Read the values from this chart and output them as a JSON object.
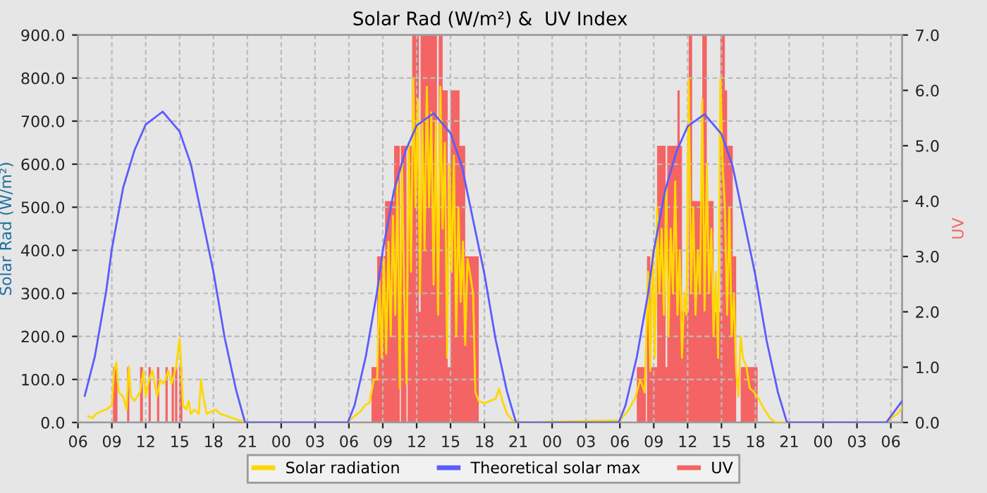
{
  "chart_data": {
    "type": "line",
    "title": "Solar Rad (W/m²) &  UV Index",
    "ylabel": "Solar Rad (W/m²)",
    "y2label": "UV",
    "xlim": [
      6,
      79
    ],
    "ylim": [
      0,
      900
    ],
    "y2lim": [
      0,
      7
    ],
    "xticks": [
      {
        "value": 6,
        "label": "06"
      },
      {
        "value": 9,
        "label": "09"
      },
      {
        "value": 12,
        "label": "12"
      },
      {
        "value": 15,
        "label": "15"
      },
      {
        "value": 18,
        "label": "18"
      },
      {
        "value": 21,
        "label": "21"
      },
      {
        "value": 24,
        "label": "00"
      },
      {
        "value": 27,
        "label": "03"
      },
      {
        "value": 30,
        "label": "06"
      },
      {
        "value": 33,
        "label": "09"
      },
      {
        "value": 36,
        "label": "12"
      },
      {
        "value": 39,
        "label": "15"
      },
      {
        "value": 42,
        "label": "18"
      },
      {
        "value": 45,
        "label": "21"
      },
      {
        "value": 48,
        "label": "00"
      },
      {
        "value": 51,
        "label": "03"
      },
      {
        "value": 54,
        "label": "06"
      },
      {
        "value": 57,
        "label": "09"
      },
      {
        "value": 60,
        "label": "12"
      },
      {
        "value": 63,
        "label": "15"
      },
      {
        "value": 66,
        "label": "18"
      },
      {
        "value": 69,
        "label": "21"
      },
      {
        "value": 72,
        "label": "00"
      },
      {
        "value": 75,
        "label": "03"
      },
      {
        "value": 78,
        "label": "06"
      }
    ],
    "yticks": [
      {
        "value": 0,
        "label": "0.0"
      },
      {
        "value": 100,
        "label": "100.0"
      },
      {
        "value": 200,
        "label": "200.0"
      },
      {
        "value": 300,
        "label": "300.0"
      },
      {
        "value": 400,
        "label": "400.0"
      },
      {
        "value": 500,
        "label": "500.0"
      },
      {
        "value": 600,
        "label": "600.0"
      },
      {
        "value": 700,
        "label": "700.0"
      },
      {
        "value": 800,
        "label": "800.0"
      },
      {
        "value": 900,
        "label": "900.0"
      }
    ],
    "y2ticks": [
      {
        "value": 0,
        "label": "0.0"
      },
      {
        "value": 1,
        "label": "1.0"
      },
      {
        "value": 2,
        "label": "2.0"
      },
      {
        "value": 3,
        "label": "3.0"
      },
      {
        "value": 4,
        "label": "4.0"
      },
      {
        "value": 5,
        "label": "5.0"
      },
      {
        "value": 6,
        "label": "6.0"
      },
      {
        "value": 7,
        "label": "7.0"
      }
    ],
    "grid": true,
    "legend": "bottom",
    "series": [
      {
        "name": "UV",
        "type": "area",
        "axis": "y2",
        "color": "#f46464",
        "x": [
          6.6,
          9.1,
          9.5,
          10.35,
          10.55,
          11.5,
          11.75,
          12.25,
          12.45,
          13.0,
          13.2,
          13.75,
          13.95,
          14.3,
          14.5,
          14.6,
          14.8,
          14.95,
          15.25,
          32.0,
          32.5,
          33.2,
          34.0,
          34.5,
          34.6,
          35.1,
          35.2,
          35.6,
          36.2,
          36.35,
          37.8,
          37.95,
          38.3,
          38.75,
          39.0,
          39.8,
          40.3,
          41.5,
          55.5,
          56.3,
          56.4,
          56.7,
          57.3,
          58.05,
          58.2,
          59.1,
          59.3,
          59.5,
          60.1,
          60.4,
          61.3,
          61.7,
          62.3,
          62.9,
          63.3,
          63.5,
          64.0,
          64.3,
          64.7,
          66.2,
          78.9
        ],
        "values": [
          0,
          1,
          0,
          1,
          0,
          1,
          0,
          1,
          0,
          1,
          0,
          1,
          0,
          1,
          0,
          1,
          0,
          1,
          0,
          1,
          3,
          4,
          5,
          0,
          5,
          0,
          5,
          7,
          2,
          7,
          2,
          7,
          6,
          1,
          6,
          5,
          3,
          0,
          1,
          0,
          3,
          1,
          5,
          1,
          5,
          6,
          5,
          2,
          7,
          4,
          7,
          4,
          2,
          7,
          6,
          5,
          3,
          0,
          1,
          0,
          0
        ]
      },
      {
        "name": "Solar radiation",
        "color": "#ffd700",
        "x": [
          6.9,
          7.3,
          7.6,
          8.0,
          8.5,
          9.0,
          9.2,
          9.4,
          9.6,
          10.0,
          10.3,
          10.5,
          10.7,
          11.0,
          11.5,
          11.8,
          12.0,
          12.3,
          12.6,
          13.0,
          13.3,
          13.6,
          14.0,
          14.3,
          14.7,
          15.0,
          15.1,
          15.3,
          15.6,
          15.8,
          16.0,
          16.3,
          16.7,
          16.9,
          17.1,
          17.4,
          17.8,
          18.2,
          18.6,
          19.2,
          19.7,
          20.3,
          21.0,
          29.8,
          30.5,
          31.0,
          31.5,
          31.8,
          32.0,
          32.2,
          32.5,
          32.7,
          32.9,
          33.1,
          33.3,
          33.5,
          33.7,
          33.9,
          34.1,
          34.3,
          34.5,
          34.7,
          34.9,
          35.1,
          35.3,
          35.5,
          35.7,
          35.9,
          36.1,
          36.3,
          36.5,
          36.7,
          36.9,
          37.1,
          37.3,
          37.5,
          37.7,
          37.9,
          38.1,
          38.3,
          38.5,
          38.7,
          38.9,
          39.1,
          39.3,
          39.5,
          39.7,
          39.9,
          40.1,
          40.3,
          40.5,
          40.7,
          41.0,
          41.2,
          41.5,
          42.0,
          42.5,
          43.0,
          43.3,
          43.6,
          44.0,
          44.5,
          45.0,
          54.0,
          54.8,
          55.4,
          55.8,
          56.2,
          56.5,
          56.7,
          56.9,
          57.1,
          57.3,
          57.5,
          57.7,
          57.9,
          58.1,
          58.3,
          58.5,
          58.7,
          58.9,
          59.1,
          59.3,
          59.5,
          59.7,
          59.9,
          60.1,
          60.3,
          60.5,
          60.7,
          60.9,
          61.1,
          61.3,
          61.5,
          61.7,
          61.9,
          62.1,
          62.3,
          62.5,
          62.7,
          62.9,
          63.1,
          63.3,
          63.5,
          63.7,
          63.9,
          64.1,
          64.3,
          64.5,
          64.7,
          64.9,
          65.2,
          65.5,
          65.9,
          66.3,
          66.8,
          67.3,
          67.8,
          77.6,
          78.0,
          78.6,
          79.0
        ],
        "values": [
          15,
          10,
          20,
          25,
          30,
          40,
          120,
          140,
          70,
          60,
          30,
          130,
          60,
          50,
          70,
          120,
          60,
          100,
          120,
          60,
          100,
          90,
          120,
          90,
          130,
          195,
          150,
          40,
          30,
          50,
          20,
          30,
          20,
          100,
          60,
          20,
          25,
          30,
          20,
          15,
          10,
          5,
          0,
          0,
          15,
          25,
          42,
          45,
          70,
          100,
          100,
          330,
          150,
          380,
          160,
          420,
          200,
          480,
          250,
          560,
          80,
          600,
          300,
          90,
          650,
          350,
          800,
          500,
          750,
          300,
          700,
          400,
          780,
          500,
          720,
          320,
          700,
          250,
          780,
          450,
          650,
          150,
          600,
          350,
          620,
          200,
          500,
          280,
          420,
          180,
          380,
          350,
          300,
          70,
          50,
          45,
          50,
          55,
          78,
          50,
          20,
          5,
          0,
          5,
          30,
          60,
          100,
          70,
          350,
          120,
          400,
          150,
          500,
          300,
          450,
          250,
          550,
          200,
          450,
          300,
          560,
          250,
          400,
          150,
          300,
          250,
          800,
          300,
          500,
          250,
          400,
          300,
          750,
          260,
          600,
          300,
          450,
          200,
          350,
          150,
          800,
          600,
          500,
          250,
          500,
          200,
          300,
          120,
          60,
          200,
          150,
          130,
          80,
          70,
          55,
          30,
          10,
          0,
          0,
          10,
          20,
          35
        ]
      },
      {
        "name": "Theoretical solar max",
        "color": "#5b5bff",
        "x": [
          6.6,
          7.5,
          8.5,
          9.0,
          10.0,
          11.0,
          12.0,
          13.5,
          15.0,
          16.0,
          17.0,
          18.0,
          19.0,
          20.0,
          20.8,
          29.9,
          30.5,
          31.5,
          32.5,
          33.0,
          34.0,
          35.0,
          36.0,
          37.5,
          39.0,
          40.0,
          41.0,
          42.0,
          43.0,
          44.0,
          44.8,
          53.9,
          54.5,
          55.5,
          56.5,
          57.0,
          58.0,
          59.0,
          60.0,
          61.5,
          63.0,
          64.0,
          65.0,
          66.0,
          67.0,
          68.0,
          68.8,
          77.6,
          79.0
        ],
        "values": [
          62,
          154,
          305,
          403,
          545,
          632,
          692,
          722,
          676,
          600,
          475,
          350,
          196,
          76,
          0,
          0,
          40,
          154,
          305,
          400,
          540,
          630,
          690,
          718,
          672,
          596,
          470,
          345,
          192,
          72,
          0,
          0,
          40,
          152,
          300,
          398,
          538,
          628,
          688,
          716,
          670,
          594,
          468,
          342,
          190,
          70,
          0,
          0,
          50
        ]
      }
    ]
  }
}
